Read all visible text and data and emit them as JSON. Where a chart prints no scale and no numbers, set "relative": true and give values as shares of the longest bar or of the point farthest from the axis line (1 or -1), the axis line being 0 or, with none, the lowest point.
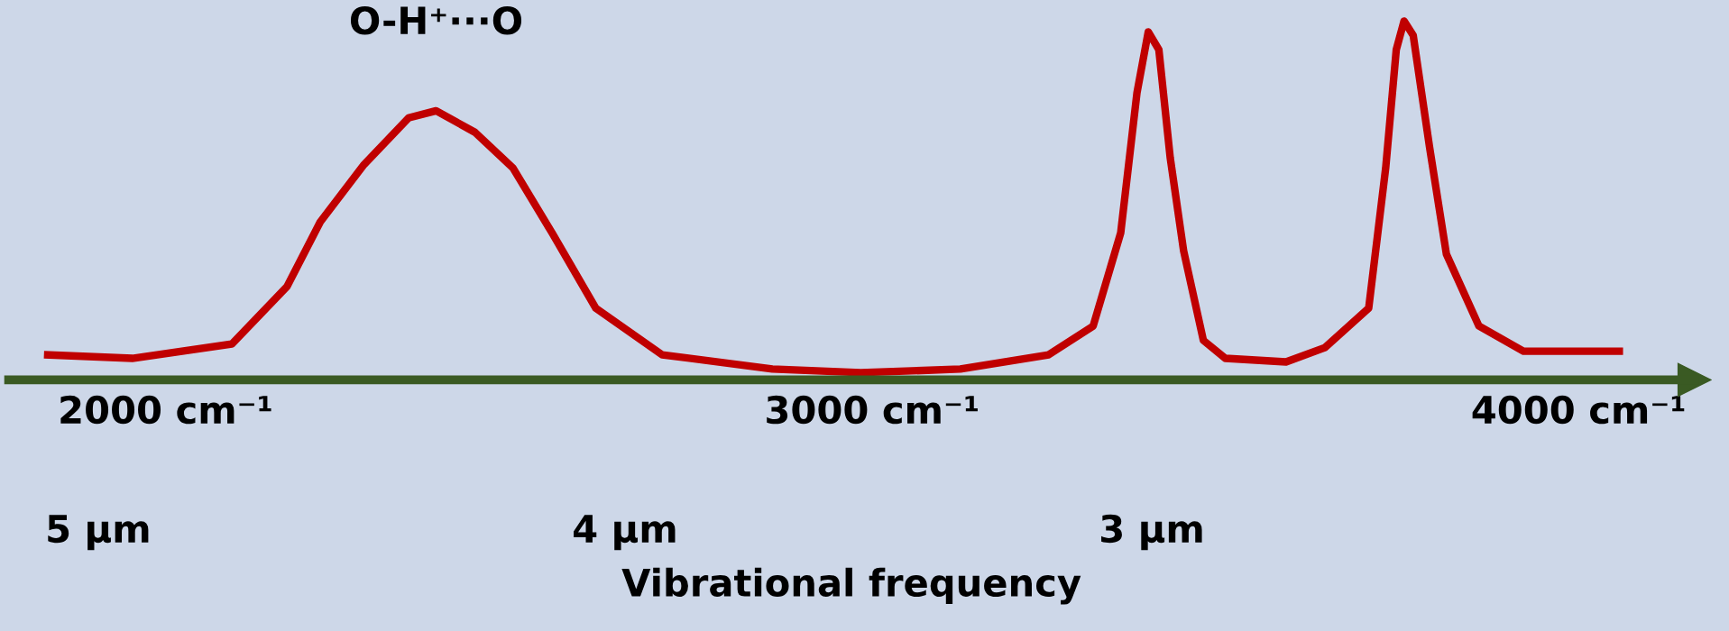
{
  "chart_data": {
    "type": "line",
    "relative": true,
    "xlabel": "Vibrational frequency",
    "xlim": [
      1778,
      4164
    ],
    "xticks": [
      {
        "value": 2000,
        "label": "2000 cm⁻¹"
      },
      {
        "value": 3000,
        "label": "3000 cm⁻¹"
      },
      {
        "value": 4000,
        "label": "4000 cm⁻¹"
      }
    ],
    "x2lim": [
      5.17,
      1.97
    ],
    "x2ticks": [
      {
        "value": 5,
        "label": "5 µm"
      },
      {
        "value": 4,
        "label": "4 µm"
      },
      {
        "value": 3,
        "label": "3 µm"
      }
    ],
    "annotations": [
      {
        "text": "O-H⁺···O",
        "x": 2383,
        "y": 0.75
      }
    ],
    "series": [
      {
        "color": "#c00000",
        "x": [
          1828,
          1953,
          2094,
          2172,
          2219,
          2281,
          2344,
          2383,
          2438,
          2492,
          2547,
          2609,
          2703,
          2859,
          2984,
          3125,
          3250,
          3313,
          3352,
          3375,
          3391,
          3406,
          3422,
          3441,
          3469,
          3500,
          3586,
          3641,
          3703,
          3727,
          3742,
          3753,
          3766,
          3789,
          3813,
          3859,
          3922,
          4063
        ],
        "values": [
          0.07,
          0.06,
          0.1,
          0.26,
          0.44,
          0.6,
          0.73,
          0.75,
          0.69,
          0.59,
          0.41,
          0.2,
          0.07,
          0.03,
          0.02,
          0.03,
          0.07,
          0.15,
          0.41,
          0.8,
          0.97,
          0.92,
          0.62,
          0.36,
          0.11,
          0.06,
          0.05,
          0.09,
          0.2,
          0.59,
          0.92,
          1.0,
          0.96,
          0.65,
          0.35,
          0.15,
          0.08,
          0.08
        ]
      }
    ],
    "grid": false,
    "marker": "none",
    "line_style": "solid"
  }
}
